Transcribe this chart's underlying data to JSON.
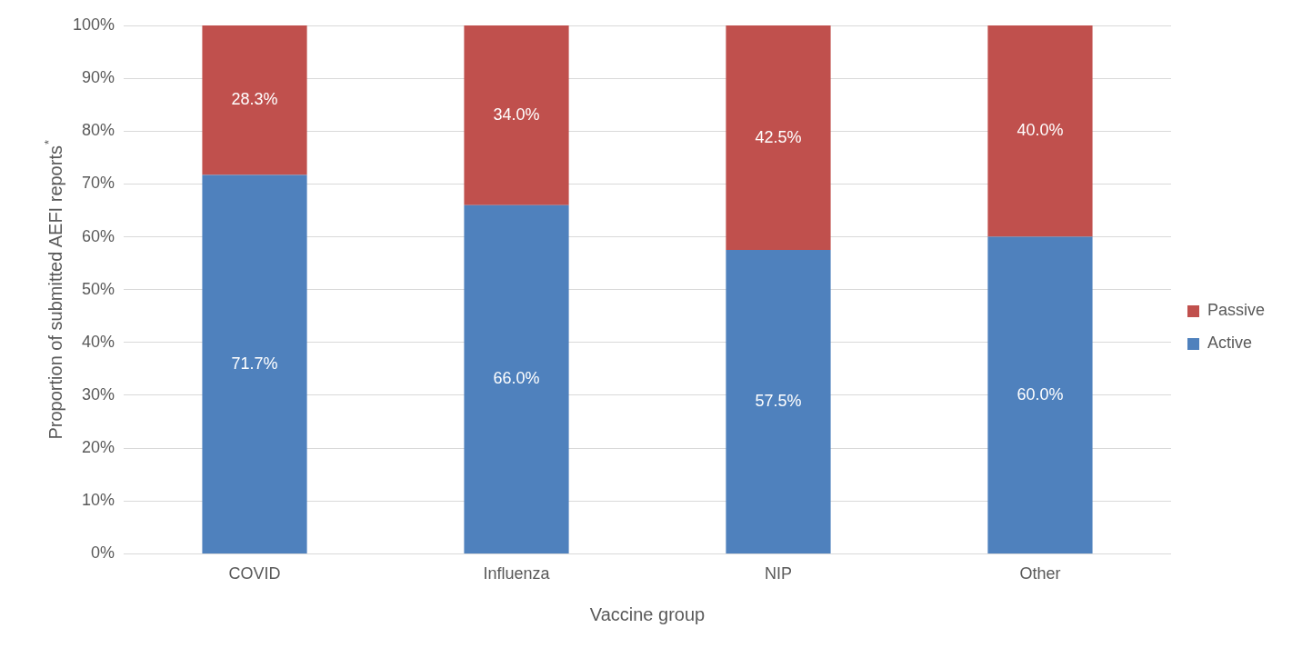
{
  "chart_data": {
    "type": "bar",
    "stacked": true,
    "xlabel": "Vaccine group",
    "ylabel": "Proportion of submitted AEFI reports$^{*}$",
    "categories": [
      "COVID",
      "Influenza",
      "NIP",
      "Other"
    ],
    "series": [
      {
        "name": "Active",
        "color": "#4f81bd",
        "values": [
          71.7,
          66.0,
          57.5,
          60.0
        ],
        "value_labels": [
          "71.7%",
          "66.0%",
          "57.5%",
          "60.0%"
        ]
      },
      {
        "name": "Passive",
        "color": "#c0504d",
        "values": [
          28.3,
          34.0,
          42.5,
          40.0
        ],
        "value_labels": [
          "28.3%",
          "34.0%",
          "42.5%",
          "40.0%"
        ]
      }
    ],
    "ylim": [
      0,
      100
    ],
    "yticks": [
      {
        "value": 0,
        "label": "0%"
      },
      {
        "value": 10,
        "label": "10%"
      },
      {
        "value": 20,
        "label": "20%"
      },
      {
        "value": 30,
        "label": "30%"
      },
      {
        "value": 40,
        "label": "40%"
      },
      {
        "value": 50,
        "label": "50%"
      },
      {
        "value": 60,
        "label": "60%"
      },
      {
        "value": 70,
        "label": "70%"
      },
      {
        "value": 80,
        "label": "80%"
      },
      {
        "value": 90,
        "label": "90%"
      },
      {
        "value": 100,
        "label": "100%"
      }
    ],
    "grid": "y",
    "legend": "right"
  }
}
